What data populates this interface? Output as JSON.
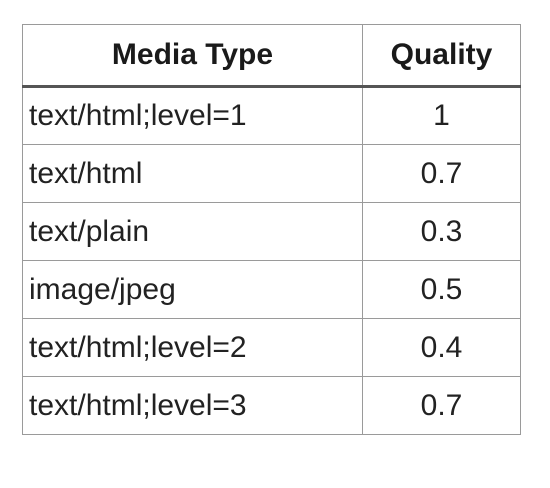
{
  "table": {
    "headers": {
      "media_type": "Media Type",
      "quality": "Quality"
    },
    "rows": [
      {
        "media_type": "text/html;level=1",
        "quality": "1"
      },
      {
        "media_type": "text/html",
        "quality": "0.7"
      },
      {
        "media_type": "text/plain",
        "quality": "0.3"
      },
      {
        "media_type": "image/jpeg",
        "quality": "0.5"
      },
      {
        "media_type": "text/html;level=2",
        "quality": "0.4"
      },
      {
        "media_type": "text/html;level=3",
        "quality": "0.7"
      }
    ]
  }
}
